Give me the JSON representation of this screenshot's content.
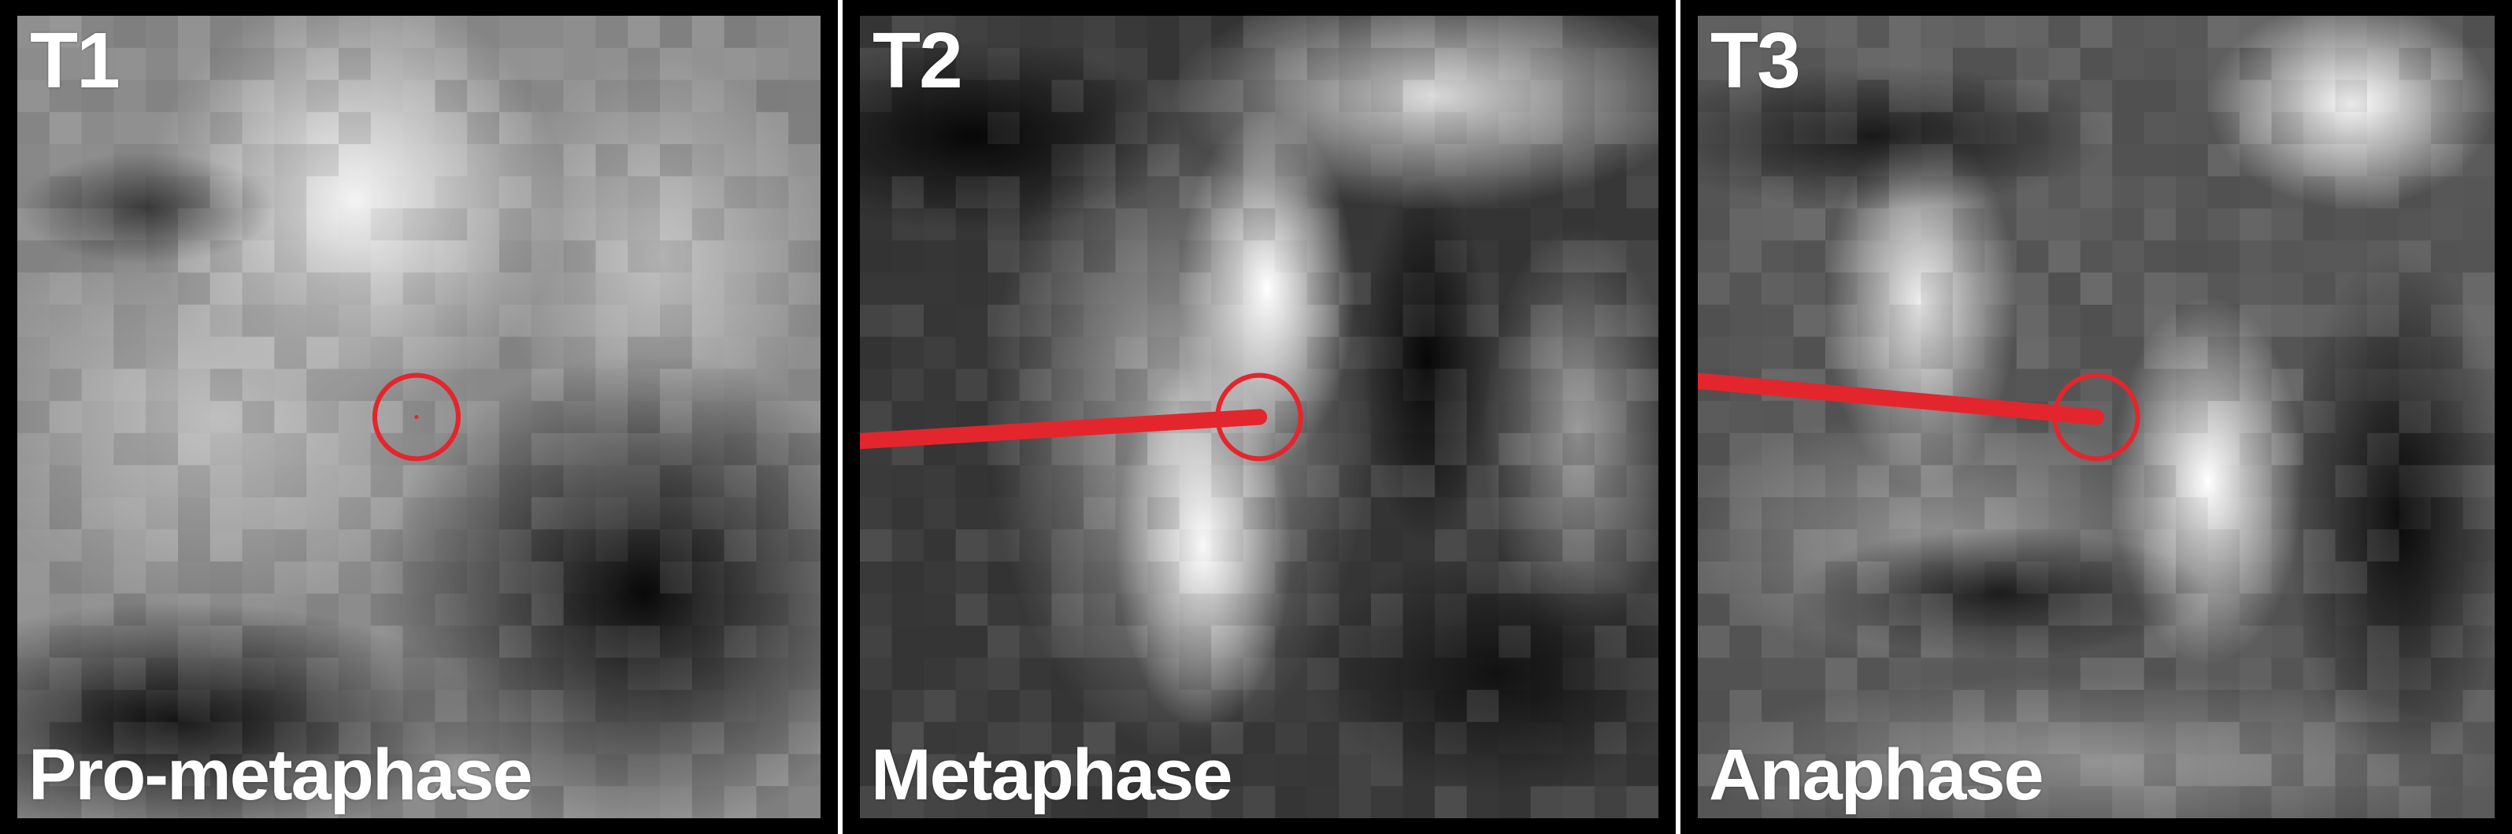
{
  "panels": [
    {
      "time_label": "T1",
      "phase_label": "Pro-metaphase"
    },
    {
      "time_label": "T2",
      "phase_label": "Metaphase"
    },
    {
      "time_label": "T3",
      "phase_label": "Anaphase"
    }
  ],
  "colors": {
    "track_red": "#e3262d",
    "frame_black": "#000000",
    "separator_white": "#ffffff",
    "label_white": "#ffffff"
  }
}
